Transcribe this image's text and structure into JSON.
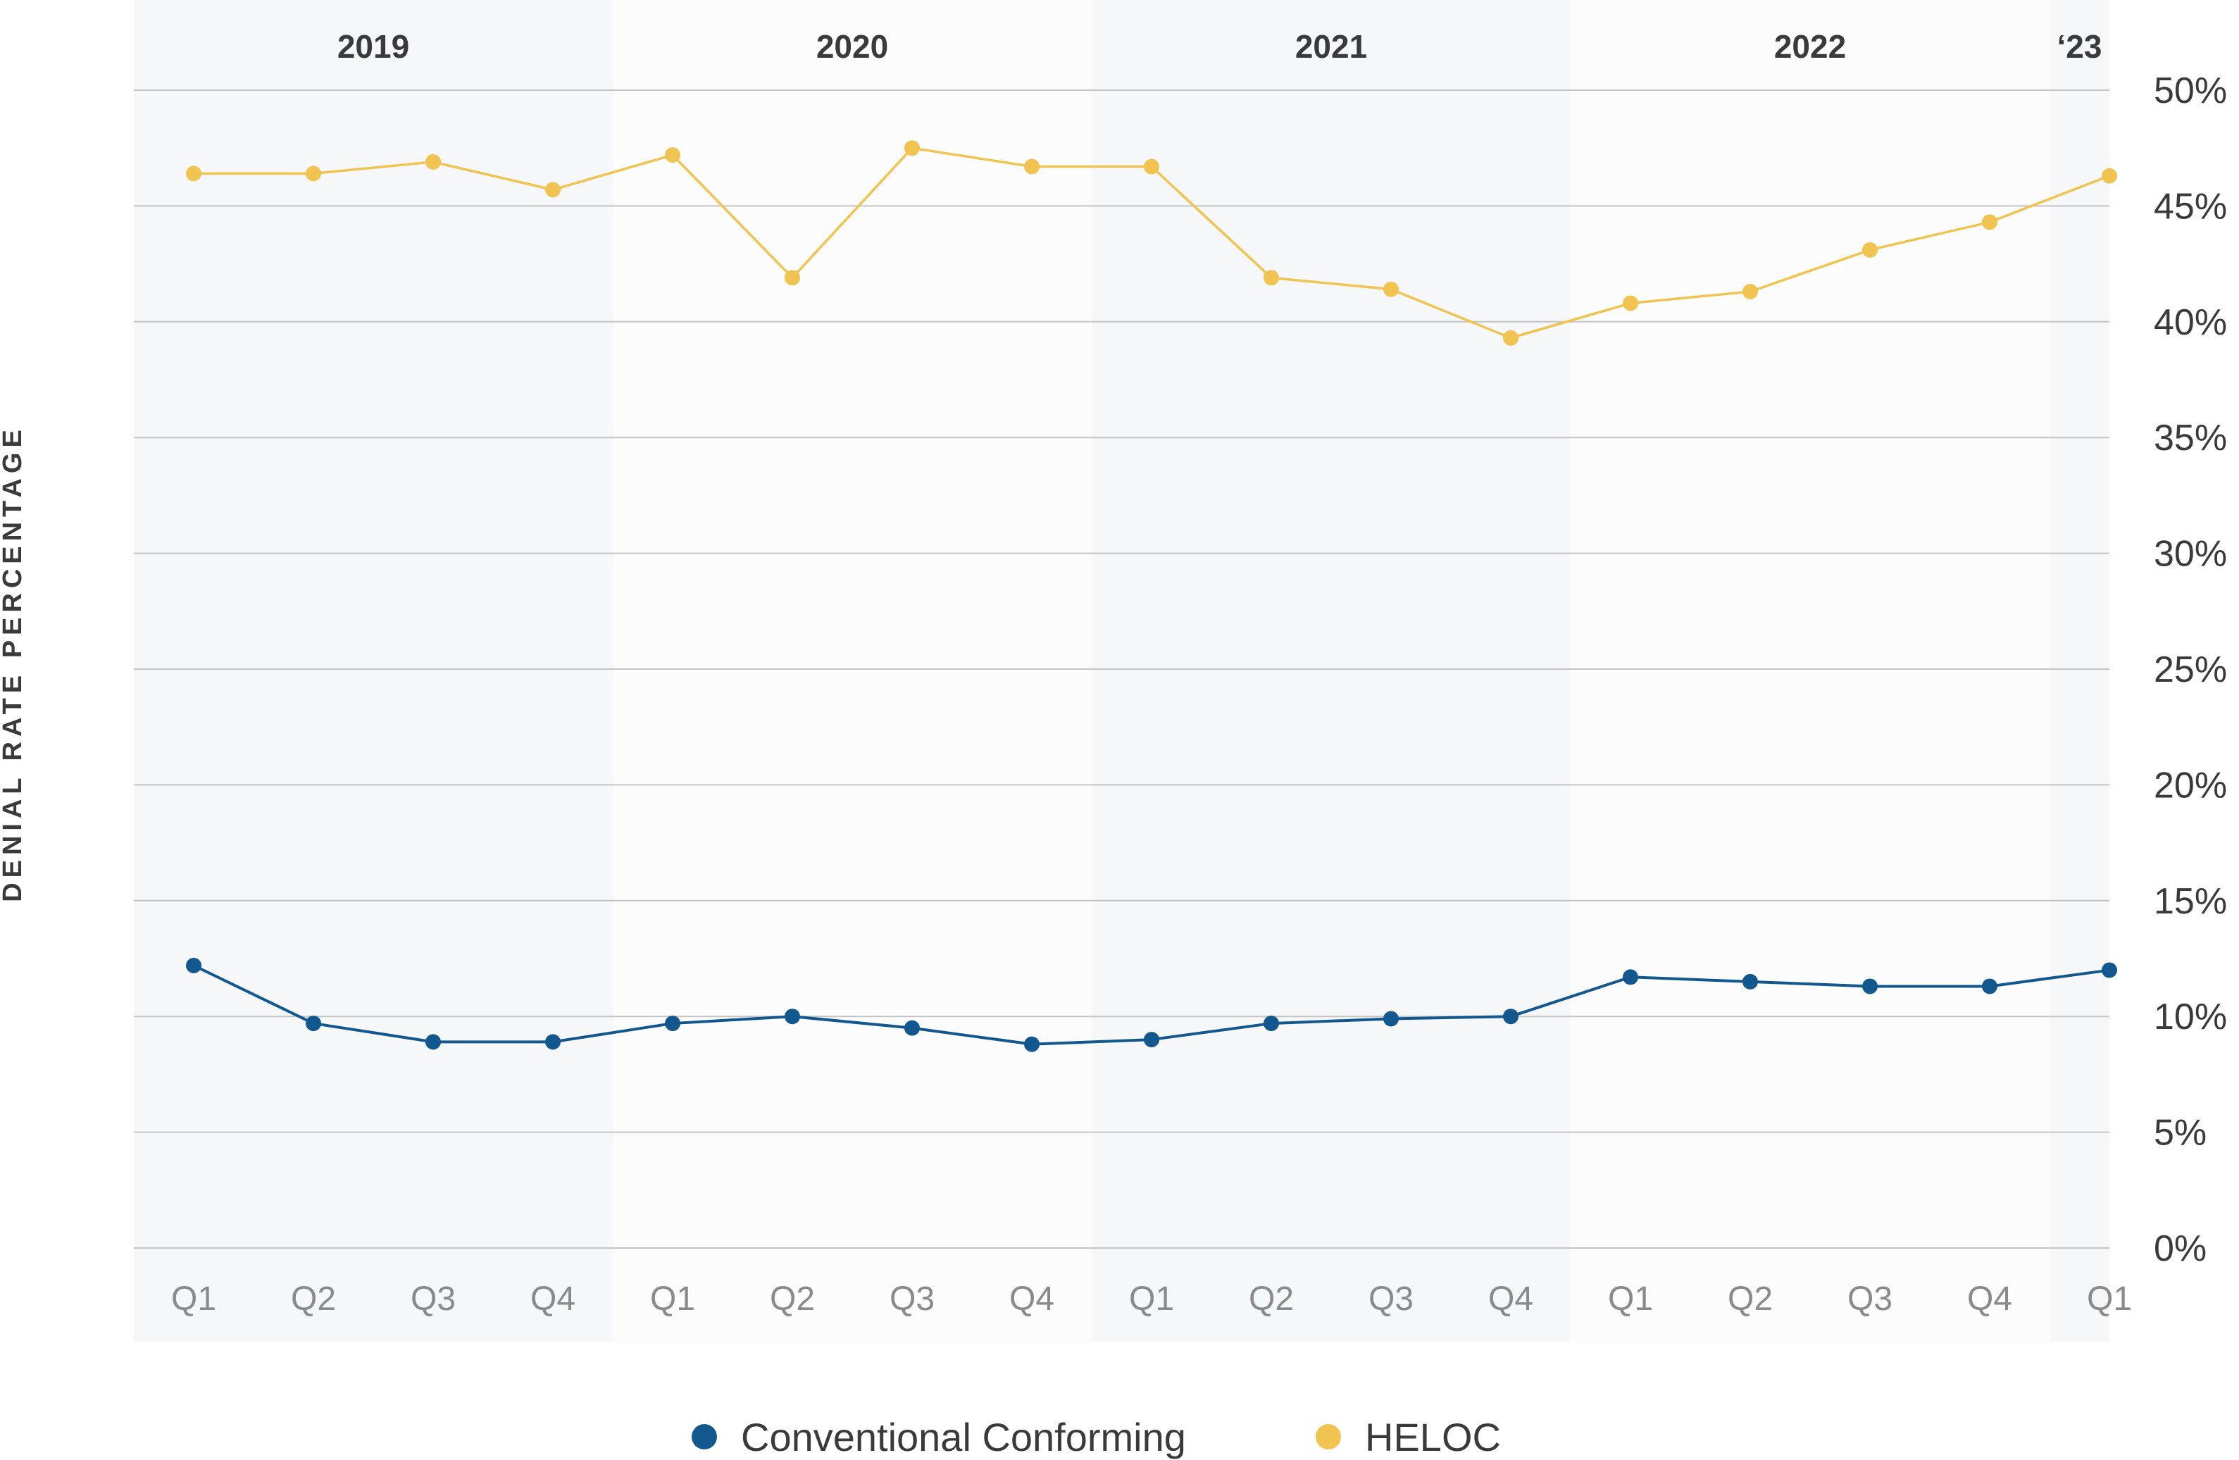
{
  "chart_data": {
    "type": "line",
    "title": "",
    "xlabel": "",
    "ylabel": "DENIAL RATE PERCENTAGE",
    "ylim": [
      0,
      50
    ],
    "y_ticks": [
      "0%",
      "5%",
      "10%",
      "15%",
      "20%",
      "25%",
      "30%",
      "35%",
      "40%",
      "45%",
      "50%"
    ],
    "year_groups": [
      {
        "label": "2019",
        "quarters": 4
      },
      {
        "label": "2020",
        "quarters": 4
      },
      {
        "label": "2021",
        "quarters": 4
      },
      {
        "label": "2022",
        "quarters": 4
      },
      {
        "label": "‘23",
        "quarters": 1
      }
    ],
    "categories": [
      "Q1",
      "Q2",
      "Q3",
      "Q4",
      "Q1",
      "Q2",
      "Q3",
      "Q4",
      "Q1",
      "Q2",
      "Q3",
      "Q4",
      "Q1",
      "Q2",
      "Q3",
      "Q4",
      "Q1"
    ],
    "series": [
      {
        "name": "Conventional Conforming",
        "color": "#13578f",
        "values": [
          12.2,
          9.7,
          8.9,
          8.9,
          9.7,
          10.0,
          9.5,
          8.8,
          9.0,
          9.7,
          9.9,
          10.0,
          11.7,
          11.5,
          11.3,
          11.3,
          12.0
        ]
      },
      {
        "name": "HELOC",
        "color": "#f1c452",
        "values": [
          46.4,
          46.4,
          46.9,
          45.7,
          47.2,
          41.9,
          47.5,
          46.7,
          46.7,
          41.9,
          41.4,
          39.3,
          40.8,
          41.3,
          43.1,
          44.3,
          46.3
        ]
      }
    ],
    "legend_position": "bottom-center",
    "colors": {
      "band_dark": "#f6f7f8",
      "band_light": "#fcfcfc",
      "grid": "#c4c4c4"
    }
  }
}
